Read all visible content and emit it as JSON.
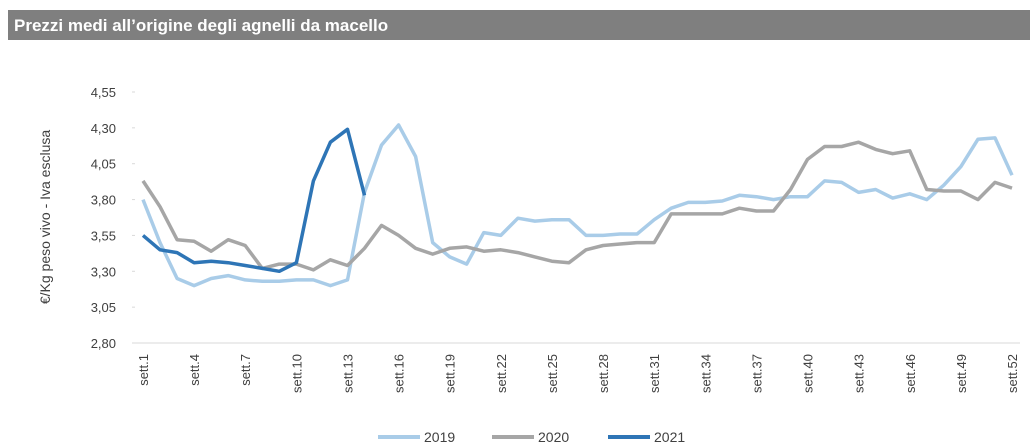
{
  "chart_data": {
    "type": "line",
    "title": "Prezzi medi all’origine degli agnelli da macello",
    "ylabel": "€/Kg peso vivo - Iva esclusa",
    "categories": [
      "sett.1",
      null,
      null,
      "sett.4",
      null,
      null,
      "sett.7",
      null,
      null,
      "sett.10",
      null,
      null,
      "sett.13",
      null,
      null,
      "sett.16",
      null,
      null,
      "sett.19",
      null,
      null,
      "sett.22",
      null,
      null,
      "sett.25",
      null,
      null,
      "sett.28",
      null,
      null,
      "sett.31",
      null,
      null,
      "sett.34",
      null,
      null,
      "sett.37",
      null,
      null,
      "sett.40",
      null,
      null,
      "sett.43",
      null,
      null,
      "sett.46",
      null,
      null,
      "sett.49",
      null,
      null,
      "sett.52"
    ],
    "series": [
      {
        "name": "2019",
        "color": "#a9cce8",
        "values": [
          3.8,
          3.5,
          3.25,
          3.2,
          3.25,
          3.27,
          3.24,
          3.23,
          3.23,
          3.24,
          3.24,
          3.2,
          3.24,
          3.85,
          4.18,
          4.32,
          4.1,
          3.5,
          3.4,
          3.35,
          3.57,
          3.55,
          3.67,
          3.65,
          3.66,
          3.66,
          3.55,
          3.55,
          3.56,
          3.56,
          3.66,
          3.74,
          3.78,
          3.78,
          3.79,
          3.83,
          3.82,
          3.8,
          3.82,
          3.82,
          3.93,
          3.92,
          3.85,
          3.87,
          3.81,
          3.84,
          3.8,
          3.9,
          4.03,
          4.22,
          4.23,
          3.97
        ]
      },
      {
        "name": "2020",
        "color": "#a6a6a6",
        "values": [
          3.93,
          3.75,
          3.52,
          3.51,
          3.44,
          3.52,
          3.48,
          3.32,
          3.35,
          3.35,
          3.31,
          3.38,
          3.34,
          3.46,
          3.62,
          3.55,
          3.46,
          3.42,
          3.46,
          3.47,
          3.44,
          3.45,
          3.43,
          3.4,
          3.37,
          3.36,
          3.45,
          3.48,
          3.49,
          3.5,
          3.5,
          3.7,
          3.7,
          3.7,
          3.7,
          3.74,
          3.72,
          3.72,
          3.87,
          4.08,
          4.17,
          4.17,
          4.2,
          4.15,
          4.12,
          4.14,
          3.87,
          3.86,
          3.86,
          3.8,
          3.92,
          3.88
        ]
      },
      {
        "name": "2021",
        "color": "#2e75b6",
        "values": [
          3.55,
          3.45,
          3.43,
          3.36,
          3.37,
          3.36,
          3.34,
          3.32,
          3.3,
          3.36,
          3.93,
          4.2,
          4.29,
          3.83,
          null,
          null,
          null,
          null,
          null,
          null,
          null,
          null,
          null,
          null,
          null,
          null,
          null,
          null,
          null,
          null,
          null,
          null,
          null,
          null,
          null,
          null,
          null,
          null,
          null,
          null,
          null,
          null,
          null,
          null,
          null,
          null,
          null,
          null,
          null,
          null,
          null,
          null
        ]
      }
    ],
    "ylim": [
      2.8,
      4.55
    ],
    "yticks": [
      {
        "value": 2.8,
        "label": "2,80"
      },
      {
        "value": 3.05,
        "label": "3,05"
      },
      {
        "value": 3.3,
        "label": "3,30"
      },
      {
        "value": 3.55,
        "label": "3,55"
      },
      {
        "value": 3.8,
        "label": "3,80"
      },
      {
        "value": 4.05,
        "label": "4,05"
      },
      {
        "value": 4.3,
        "label": "4,30"
      },
      {
        "value": 4.55,
        "label": "4,55"
      }
    ],
    "legend": "bottom"
  }
}
